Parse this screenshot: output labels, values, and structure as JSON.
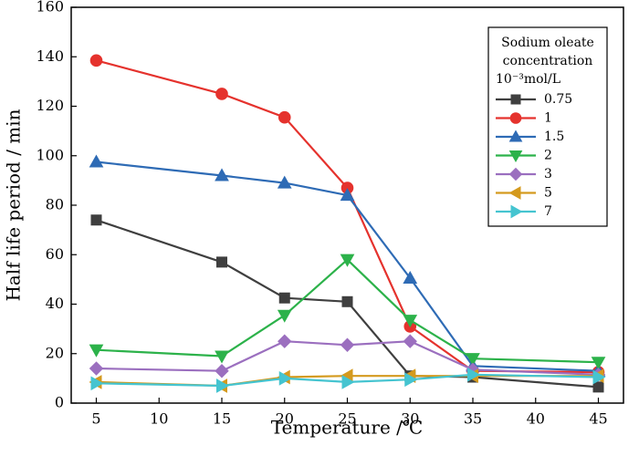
{
  "chart_data": {
    "type": "line",
    "title": "",
    "xlabel": "Temperature /℃",
    "ylabel": "Half life period  / min",
    "xlim": [
      3,
      47
    ],
    "ylim": [
      0,
      160
    ],
    "xticks": [
      5,
      10,
      15,
      20,
      25,
      30,
      35,
      40,
      45
    ],
    "yticks": [
      0,
      20,
      40,
      60,
      80,
      100,
      120,
      140,
      160
    ],
    "grid": false,
    "legend": {
      "position": "top-right",
      "title_lines": [
        "Sodium oleate",
        "concentration",
        "10⁻³mol/L"
      ]
    },
    "series": [
      {
        "name": "0.75",
        "color": "#3f3f3f",
        "marker": "square",
        "x": [
          5,
          15,
          20,
          25,
          30,
          35,
          45
        ],
        "y": [
          74,
          57,
          42.5,
          41,
          11,
          10.5,
          6.5
        ]
      },
      {
        "name": "1",
        "color": "#e5322d",
        "marker": "circle",
        "x": [
          5,
          15,
          20,
          25,
          30,
          35,
          45
        ],
        "y": [
          138.5,
          125,
          115.5,
          87,
          31,
          13,
          12.5
        ]
      },
      {
        "name": "1.5",
        "color": "#2e6bb5",
        "marker": "triangle-up",
        "x": [
          5,
          15,
          20,
          25,
          30,
          35,
          45
        ],
        "y": [
          97.5,
          92,
          89,
          84,
          50.5,
          15,
          13
        ]
      },
      {
        "name": "2",
        "color": "#2cb24a",
        "marker": "triangle-down",
        "x": [
          5,
          15,
          20,
          25,
          30,
          35,
          45
        ],
        "y": [
          21.5,
          19,
          35.5,
          58,
          33.5,
          18,
          16.5
        ]
      },
      {
        "name": "3",
        "color": "#9b6fbf",
        "marker": "diamond",
        "x": [
          5,
          15,
          20,
          25,
          30,
          35,
          45
        ],
        "y": [
          14,
          13,
          25,
          23.5,
          25,
          13.5,
          11.5
        ]
      },
      {
        "name": "5",
        "color": "#d49a1e",
        "marker": "triangle-left",
        "x": [
          5,
          15,
          20,
          25,
          30,
          35,
          45
        ],
        "y": [
          8.5,
          7,
          10.5,
          11,
          11,
          11,
          11
        ]
      },
      {
        "name": "7",
        "color": "#45c4d0",
        "marker": "triangle-right",
        "x": [
          5,
          15,
          20,
          25,
          30,
          35,
          45
        ],
        "y": [
          8,
          7,
          10,
          8.5,
          9.5,
          11.5,
          10.5
        ]
      }
    ]
  }
}
